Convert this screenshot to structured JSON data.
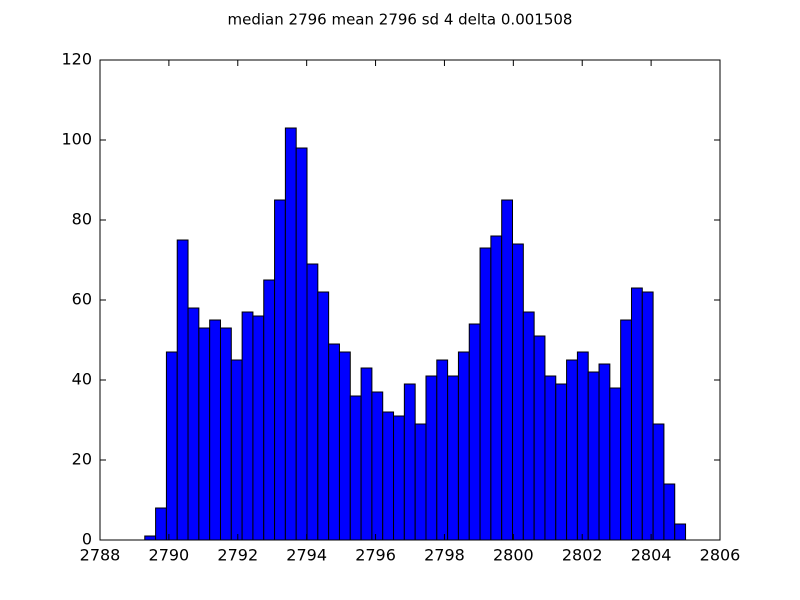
{
  "chart_data": {
    "type": "histogram",
    "title": "median 2796 mean 2796 sd 4 delta 0.001508",
    "bins": [
      2789.3,
      2789.614,
      2789.928,
      2790.242,
      2790.556,
      2790.87,
      2791.184,
      2791.498,
      2791.812,
      2792.126,
      2792.44,
      2792.754,
      2793.068,
      2793.382,
      2793.696,
      2794.01,
      2794.324,
      2794.638,
      2794.952,
      2795.266,
      2795.58,
      2795.894,
      2796.208,
      2796.522,
      2796.836,
      2797.15,
      2797.464,
      2797.778,
      2798.092,
      2798.406,
      2798.72,
      2799.034,
      2799.348,
      2799.662,
      2799.976,
      2800.29,
      2800.604,
      2800.918,
      2801.232,
      2801.546,
      2801.86,
      2802.174,
      2802.488,
      2802.802,
      2803.116,
      2803.43,
      2803.744,
      2804.058,
      2804.372,
      2804.686,
      2805.0
    ],
    "values": [
      1,
      8,
      47,
      75,
      58,
      53,
      55,
      53,
      45,
      57,
      56,
      65,
      85,
      103,
      98,
      69,
      62,
      49,
      47,
      36,
      43,
      37,
      32,
      31,
      39,
      29,
      41,
      45,
      41,
      47,
      54,
      73,
      76,
      85,
      74,
      57,
      51,
      41,
      39,
      45,
      47,
      42,
      44,
      38,
      55,
      63,
      62,
      29,
      14,
      4
    ],
    "color": "#0000ff",
    "xlim": [
      2788,
      2806
    ],
    "xticks": [
      2788,
      2790,
      2792,
      2794,
      2796,
      2798,
      2800,
      2802,
      2804,
      2806
    ],
    "ylim": [
      0,
      120
    ],
    "yticks": [
      0,
      20,
      40,
      60,
      80,
      100,
      120
    ],
    "grid": false
  }
}
